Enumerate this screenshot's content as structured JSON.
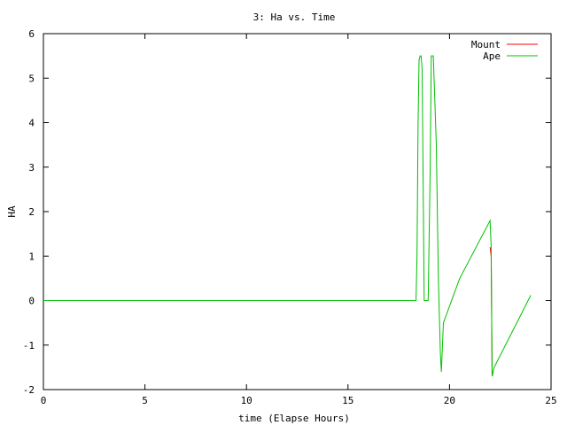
{
  "chart_data": {
    "type": "line",
    "title": "3: Ha vs. Time",
    "xlabel": "time (Elapse Hours)",
    "ylabel": "HA",
    "xlim": [
      0,
      25
    ],
    "ylim": [
      -2,
      6
    ],
    "xticks": [
      0,
      5,
      10,
      15,
      20,
      25
    ],
    "yticks": [
      -2,
      -1,
      0,
      1,
      2,
      3,
      4,
      5,
      6
    ],
    "grid": false,
    "legend_position": "top-right",
    "series": [
      {
        "name": "Mount",
        "color": "#ff0000",
        "points": [
          [
            22.0,
            1.2
          ],
          [
            22.05,
            1.0
          ],
          [
            22.1,
            -1.7
          ],
          [
            22.15,
            -1.6
          ]
        ]
      },
      {
        "name": "Ape",
        "color": "#00c000",
        "points": [
          [
            0,
            0.0
          ],
          [
            18.35,
            0.0
          ],
          [
            18.4,
            1.0
          ],
          [
            18.45,
            4.0
          ],
          [
            18.5,
            5.4
          ],
          [
            18.55,
            5.5
          ],
          [
            18.6,
            5.5
          ],
          [
            18.65,
            5.2
          ],
          [
            18.75,
            0.0
          ],
          [
            18.95,
            0.0
          ],
          [
            19.05,
            3.0
          ],
          [
            19.1,
            5.5
          ],
          [
            19.2,
            5.5
          ],
          [
            19.35,
            3.5
          ],
          [
            19.45,
            0.5
          ],
          [
            19.55,
            -1.2
          ],
          [
            19.6,
            -1.6
          ],
          [
            19.7,
            -0.5
          ],
          [
            20.5,
            0.5
          ],
          [
            22.0,
            1.8
          ],
          [
            22.05,
            1.2
          ],
          [
            22.1,
            -1.7
          ],
          [
            22.2,
            -1.5
          ],
          [
            24.0,
            0.12
          ]
        ]
      }
    ]
  }
}
